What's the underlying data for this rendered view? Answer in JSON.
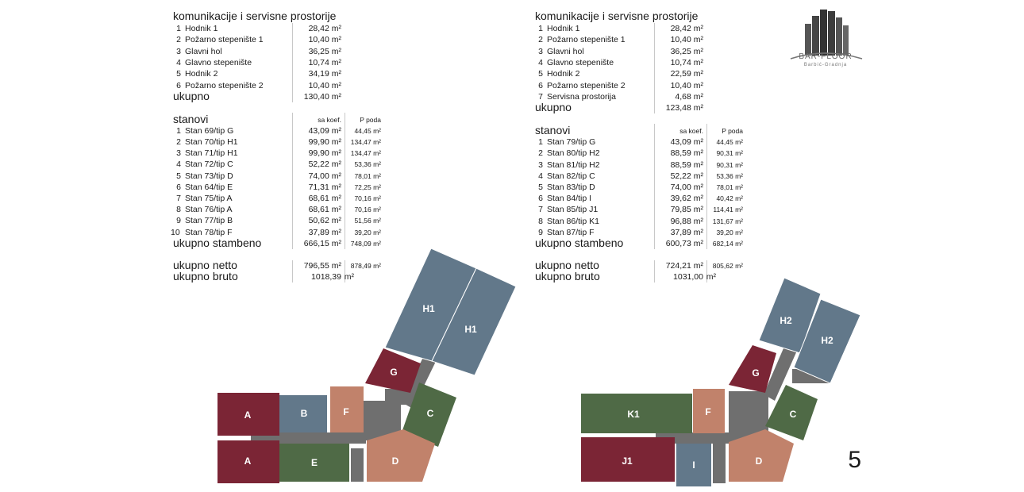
{
  "page_number": "5",
  "logo": {
    "name": "BAR-FLOOR",
    "subtitle": "Barbić-Gradnja"
  },
  "unit": "m²",
  "left": {
    "comm_title": "komunikacije i servisne prostorije",
    "comm": [
      {
        "n": "1",
        "name": "Hodnik 1",
        "v": "28,42 m²"
      },
      {
        "n": "2",
        "name": "Požarno stepenište 1",
        "v": "10,40 m²"
      },
      {
        "n": "3",
        "name": "Glavni hol",
        "v": "36,25 m²"
      },
      {
        "n": "4",
        "name": "Glavno stepenište",
        "v": "10,74 m²"
      },
      {
        "n": "5",
        "name": "Hodnik 2",
        "v": "34,19 m²"
      },
      {
        "n": "6",
        "name": "Požarno stepenište 2",
        "v": "10,40 m²"
      }
    ],
    "comm_total_label": "ukupno",
    "comm_total": "130,40 m²",
    "flats_title": "stanovi",
    "col1": "sa koef.",
    "col2": "P poda",
    "flats": [
      {
        "n": "1",
        "name": "Stan 69/tip G",
        "v1": "43,09 m²",
        "v2": "44,45 m²"
      },
      {
        "n": "2",
        "name": "Stan 70/tip H1",
        "v1": "99,90 m²",
        "v2": "134,47 m²"
      },
      {
        "n": "3",
        "name": "Stan 71/tip H1",
        "v1": "99,90 m²",
        "v2": "134,47 m²"
      },
      {
        "n": "4",
        "name": "Stan 72/tip C",
        "v1": "52,22 m²",
        "v2": "53,36 m²"
      },
      {
        "n": "5",
        "name": "Stan 73/tip D",
        "v1": "74,00 m²",
        "v2": "78,01 m²"
      },
      {
        "n": "6",
        "name": "Stan 64/tip E",
        "v1": "71,31 m²",
        "v2": "72,25 m²"
      },
      {
        "n": "7",
        "name": "Stan 75/tip A",
        "v1": "68,61 m²",
        "v2": "70,16 m²"
      },
      {
        "n": "8",
        "name": "Stan 76/tip A",
        "v1": "68,61 m²",
        "v2": "70,16 m²"
      },
      {
        "n": "9",
        "name": "Stan 77/tip B",
        "v1": "50,62 m²",
        "v2": "51,56 m²"
      },
      {
        "n": "10",
        "name": "Stan 78/tip F",
        "v1": "37,89 m²",
        "v2": "39,20 m²"
      }
    ],
    "residential_label": "ukupno stambeno",
    "residential_v1": "666,15 m²",
    "residential_v2": "748,09 m²",
    "netto_label": "ukupno netto",
    "netto_v1": "796,55 m²",
    "netto_v2": "878,49 m²",
    "bruto_label": "ukupno bruto",
    "bruto_v": "1018,39",
    "bruto_unit": "m²"
  },
  "right": {
    "comm_title": "komunikacije i servisne prostorije",
    "comm": [
      {
        "n": "1",
        "name": "Hodnik 1",
        "v": "28,42 m²"
      },
      {
        "n": "2",
        "name": "Požarno stepenište 1",
        "v": "10,40 m²"
      },
      {
        "n": "3",
        "name": "Glavni hol",
        "v": "36,25 m²"
      },
      {
        "n": "4",
        "name": "Glavno stepenište",
        "v": "10,74 m²"
      },
      {
        "n": "5",
        "name": "Hodnik 2",
        "v": "22,59 m²"
      },
      {
        "n": "6",
        "name": "Požarno stepenište 2",
        "v": "10,40 m²"
      },
      {
        "n": "7",
        "name": "Servisna prostorija",
        "v": "4,68 m²"
      }
    ],
    "comm_total_label": "ukupno",
    "comm_total": "123,48 m²",
    "flats_title": "stanovi",
    "col1": "sa koef.",
    "col2": "P poda",
    "flats": [
      {
        "n": "1",
        "name": "Stan 79/tip G",
        "v1": "43,09 m²",
        "v2": "44,45 m²"
      },
      {
        "n": "2",
        "name": "Stan 80/tip H2",
        "v1": "88,59 m²",
        "v2": "90,31 m²"
      },
      {
        "n": "3",
        "name": "Stan 81/tip H2",
        "v1": "88,59 m²",
        "v2": "90,31 m²"
      },
      {
        "n": "4",
        "name": "Stan 82/tip C",
        "v1": "52,22 m²",
        "v2": "53,36 m²"
      },
      {
        "n": "5",
        "name": "Stan 83/tip D",
        "v1": "74,00 m²",
        "v2": "78,01 m²"
      },
      {
        "n": "6",
        "name": "Stan 84/tip I",
        "v1": "39,62 m²",
        "v2": "40,42 m²"
      },
      {
        "n": "7",
        "name": "Stan 85/tip J1",
        "v1": "79,85 m²",
        "v2": "114,41 m²"
      },
      {
        "n": "8",
        "name": "Stan 86/tip K1",
        "v1": "96,88 m²",
        "v2": "131,67 m²"
      },
      {
        "n": "9",
        "name": "Stan 87/tip F",
        "v1": "37,89 m²",
        "v2": "39,20 m²"
      }
    ],
    "residential_label": "ukupno stambeno",
    "residential_v1": "600,73 m²",
    "residential_v2": "682,14 m²",
    "netto_label": "ukupno netto",
    "netto_v1": "724,21 m²",
    "netto_v2": "805,62 m²",
    "bruto_label": "ukupno bruto",
    "bruto_v": "1031,00",
    "bruto_unit": "m²"
  },
  "plan_left": {
    "labels": {
      "h1a": "H1",
      "h1b": "H1",
      "g": "G",
      "c": "C",
      "d": "D",
      "a1": "A",
      "a2": "A",
      "b": "B",
      "f": "F",
      "e": "E"
    }
  },
  "plan_right": {
    "labels": {
      "h2a": "H2",
      "h2b": "H2",
      "g": "G",
      "c": "C",
      "d": "D",
      "k1": "K1",
      "f": "F",
      "j1": "J1",
      "i": "I"
    }
  },
  "colors": {
    "H": "#62788a",
    "G": "#7b2535",
    "C": "#4f6a46",
    "D": "#c1826b",
    "A": "#7b2535",
    "B": "#62788a",
    "F": "#c1826b",
    "E": "#4f6a46",
    "K1": "#4f6a46",
    "J1": "#7b2535",
    "I": "#62788a",
    "corridor": "#6f6f6f",
    "stair": "#555555"
  }
}
